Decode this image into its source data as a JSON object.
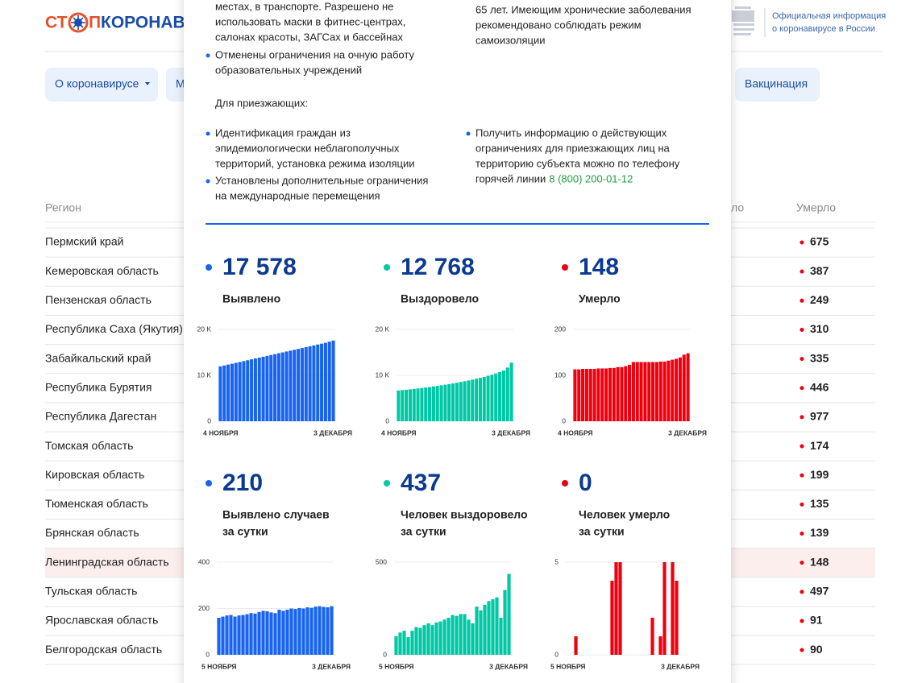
{
  "header": {
    "logo": {
      "stop_start": "СТ",
      "stop_end": "П",
      "name": "КОРОНАВИ"
    },
    "official_info": [
      "Официальная информация",
      "о коронавирусе в России"
    ]
  },
  "nav": [
    "О коронавирусе",
    "М",
    "Вакцинация"
  ],
  "table": {
    "columns": [
      "Регион",
      "ло",
      "Умерло"
    ],
    "rows": [
      [
        "Пермский край",
        675
      ],
      [
        "Кемеровская область",
        387
      ],
      [
        "Пензенская область",
        249
      ],
      [
        "Республика Саха (Якутия)",
        310
      ],
      [
        "Забайкальский край",
        335
      ],
      [
        "Республика Бурятия",
        446
      ],
      [
        "Республика Дагестан",
        977
      ],
      [
        "Томская область",
        174
      ],
      [
        "Кировская область",
        199
      ],
      [
        "Тюменская область",
        135
      ],
      [
        "Брянская область",
        139
      ],
      [
        "Ленинградская область",
        148
      ],
      [
        "Тульская область",
        497
      ],
      [
        "Ярославская область",
        91
      ],
      [
        "Белгородская область",
        90
      ]
    ]
  },
  "modal": {
    "left_top": [
      "местах, в транспорте. Разрешено не",
      "использовать маски в фитнес-центрах,",
      "салонах красоты, ЗАГСах и бассейнах"
    ],
    "left_bullets": [
      [
        "Отменены ограничения на очную работу",
        "образовательных учреждений"
      ]
    ],
    "right_top": [
      "65 лет. Имеющим хронические заболевания",
      "рекомендовано соблюдать режим",
      "самоизоляции"
    ],
    "arrivals_heading": "Для приезжающих:",
    "arrivals_left": [
      [
        "Идентификация граждан из",
        "эпидемиологически неблагополучных",
        "территорий, установка режима изоляции"
      ],
      [
        "Установлены дополнительные ограничения",
        "на международные перемещения"
      ]
    ],
    "arrivals_right": [
      [
        "Получить информацию о действующих",
        "ограничениях для приезжающих лиц на",
        "территорию субъекта можно по телефону",
        "горячей линии"
      ]
    ],
    "hotline": "8 (800) 200-01-12"
  },
  "stats": [
    {
      "value": "17 578",
      "label": [
        "Выявлено"
      ]
    },
    {
      "value": "12 768",
      "label": [
        "Выздоровело"
      ]
    },
    {
      "value": "148",
      "label": [
        "Умерло"
      ]
    },
    {
      "value": "210",
      "label": [
        "Выявлено случаев",
        "за сутки"
      ]
    },
    {
      "value": "437",
      "label": [
        "Человек выздоровело",
        "за сутки"
      ]
    },
    {
      "value": "0",
      "label": [
        "Человек умерло",
        "за сутки"
      ]
    }
  ],
  "chart_data": [
    {
      "type": "bar",
      "color": "#1864f0",
      "categories": [
        "4 НОЯБРЯ",
        null,
        null,
        null,
        null,
        null,
        null,
        null,
        null,
        null,
        null,
        null,
        null,
        null,
        null,
        null,
        null,
        null,
        null,
        null,
        null,
        null,
        null,
        null,
        null,
        null,
        null,
        null,
        null,
        "3 ДЕКАБРЯ"
      ],
      "values": [
        11950,
        12150,
        12340,
        12530,
        12720,
        12910,
        13100,
        13290,
        13480,
        13670,
        13860,
        14050,
        14240,
        14430,
        14620,
        14810,
        15000,
        15190,
        15380,
        15570,
        15760,
        15950,
        16140,
        16330,
        16520,
        16710,
        16900,
        17090,
        17330,
        17578
      ],
      "ylim": [
        0,
        20000
      ],
      "yticks": [
        0,
        {
          "value": 10000,
          "label": "10 K"
        },
        {
          "value": 20000,
          "label": "20 K"
        }
      ],
      "grid": true
    },
    {
      "type": "bar",
      "color": "#00c8a5",
      "categories": [
        "4 НОЯБРЯ",
        null,
        null,
        null,
        null,
        null,
        null,
        null,
        null,
        null,
        null,
        null,
        null,
        null,
        null,
        null,
        null,
        null,
        null,
        null,
        null,
        null,
        null,
        null,
        null,
        null,
        null,
        null,
        null,
        "3 ДЕКАБРЯ"
      ],
      "values": [
        6700,
        6780,
        6860,
        6950,
        7040,
        7140,
        7240,
        7350,
        7460,
        7580,
        7700,
        7830,
        7960,
        8100,
        8240,
        8390,
        8550,
        8710,
        8880,
        9060,
        9250,
        9450,
        9660,
        9890,
        10130,
        10400,
        10700,
        11050,
        11700,
        12768
      ],
      "ylim": [
        0,
        20000
      ],
      "yticks": [
        0,
        {
          "value": 10000,
          "label": "10 K"
        },
        {
          "value": 20000,
          "label": "20 K"
        }
      ],
      "grid": true
    },
    {
      "type": "bar",
      "color": "#f0000f",
      "categories": [
        "4 НОЯБРЯ",
        null,
        null,
        null,
        null,
        null,
        null,
        null,
        null,
        null,
        null,
        null,
        null,
        null,
        null,
        null,
        null,
        null,
        null,
        null,
        null,
        null,
        null,
        null,
        null,
        null,
        null,
        null,
        null,
        "3 ДЕКАБРЯ"
      ],
      "values": [
        113,
        113,
        114,
        114,
        114,
        114,
        115,
        115,
        115,
        116,
        116,
        118,
        118,
        120,
        123,
        129,
        129,
        129,
        129,
        129,
        129,
        129,
        130,
        130,
        132,
        134,
        136,
        139,
        145,
        148
      ],
      "ylim": [
        0,
        200
      ],
      "yticks": [
        0,
        100,
        200
      ],
      "grid": true
    },
    {
      "type": "bar",
      "color": "#1864f0",
      "categories": [
        "5 НОЯБРЯ",
        null,
        null,
        null,
        null,
        null,
        null,
        null,
        null,
        null,
        null,
        null,
        null,
        null,
        null,
        null,
        null,
        null,
        null,
        null,
        null,
        null,
        null,
        null,
        null,
        null,
        null,
        null,
        "3 ДЕКАБРЯ"
      ],
      "values": [
        160,
        165,
        170,
        172,
        165,
        170,
        172,
        175,
        180,
        178,
        185,
        190,
        188,
        183,
        180,
        195,
        190,
        195,
        200,
        198,
        202,
        200,
        205,
        203,
        208,
        210,
        207,
        205,
        210
      ],
      "ylim": [
        0,
        400
      ],
      "yticks": [
        0,
        200,
        400
      ],
      "grid": true
    },
    {
      "type": "bar",
      "color": "#00c8a5",
      "categories": [
        "5 НОЯБРЯ",
        null,
        null,
        null,
        null,
        null,
        null,
        null,
        null,
        null,
        null,
        null,
        null,
        null,
        null,
        null,
        null,
        null,
        null,
        null,
        null,
        null,
        null,
        null,
        null,
        null,
        null,
        null,
        "3 ДЕКАБРЯ"
      ],
      "values": [
        100,
        120,
        130,
        95,
        130,
        150,
        145,
        160,
        170,
        160,
        175,
        180,
        190,
        200,
        215,
        210,
        220,
        220,
        190,
        170,
        260,
        240,
        270,
        290,
        300,
        310,
        200,
        350,
        437
      ],
      "ylim": [
        0,
        500
      ],
      "yticks": [
        0,
        500
      ],
      "grid": true
    },
    {
      "type": "bar",
      "color": "#f0000f",
      "categories": [
        "5 НОЯБРЯ",
        null,
        null,
        null,
        null,
        null,
        null,
        null,
        null,
        null,
        null,
        null,
        null,
        null,
        null,
        null,
        null,
        null,
        null,
        null,
        null,
        null,
        null,
        null,
        null,
        null,
        null,
        null,
        "3 ДЕКАБРЯ"
      ],
      "values": [
        0,
        0,
        1,
        0,
        0,
        0,
        0,
        0,
        0,
        0,
        0,
        4,
        5,
        5,
        0,
        0,
        0,
        0,
        0,
        0,
        0,
        2,
        0,
        1,
        5,
        0,
        5,
        4,
        0
      ],
      "ylim": [
        0,
        5
      ],
      "yticks": [
        0,
        5
      ],
      "grid": true
    }
  ]
}
